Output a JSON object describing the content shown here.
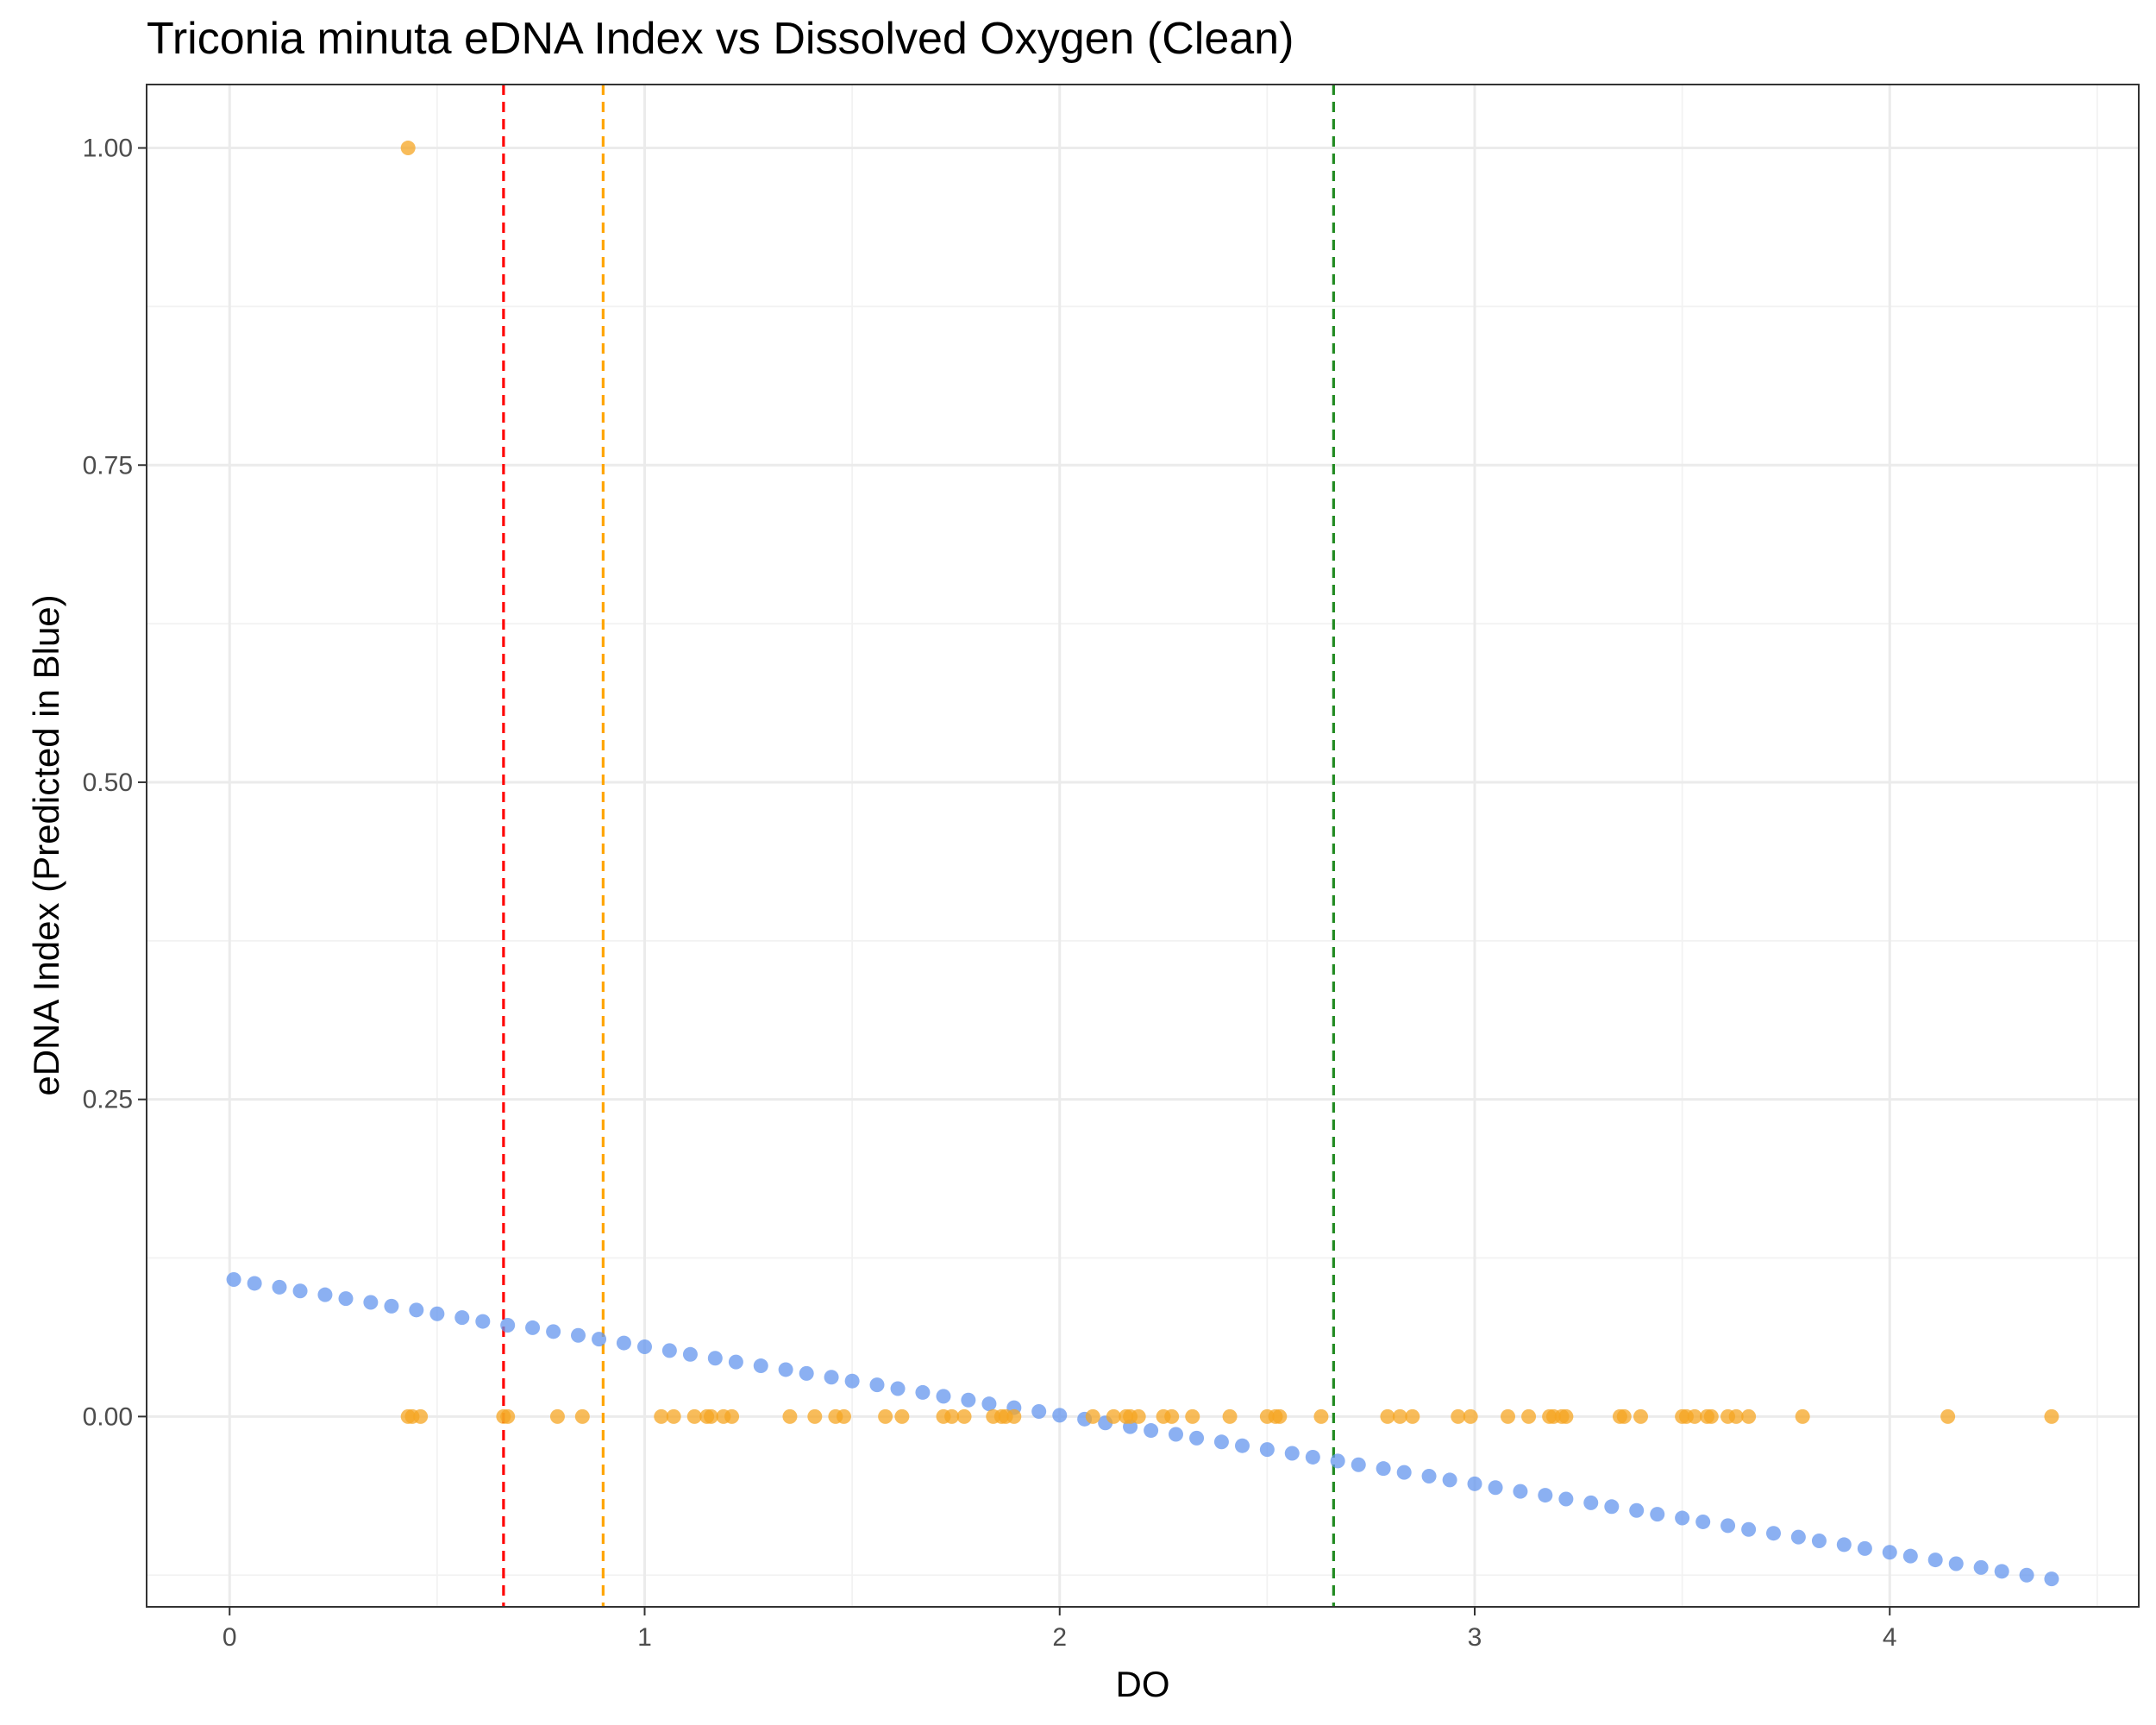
{
  "chart_data": {
    "type": "scatter",
    "title": "Triconia minuta eDNA Index vs Dissolved Oxygen (Clean)",
    "xlabel": "DO",
    "ylabel": "eDNA Index (Predicted in Blue)",
    "xlim": [
      -0.2,
      4.6
    ],
    "ylim": [
      -0.15,
      1.05
    ],
    "x_ticks": [
      0,
      1,
      2,
      3,
      4
    ],
    "y_ticks": [
      0.0,
      0.25,
      0.5,
      0.75,
      1.0
    ],
    "x_tick_labels": [
      "0",
      "1",
      "2",
      "3",
      "4"
    ],
    "y_tick_labels": [
      "0.00",
      "0.25",
      "0.50",
      "0.75",
      "1.00"
    ],
    "grid": true,
    "legend": "none",
    "series": [
      {
        "color": "#6495ED",
        "kind": "predicted",
        "points": [
          [
            0.01,
            0.108
          ],
          [
            0.06,
            0.105
          ],
          [
            0.12,
            0.102
          ],
          [
            0.17,
            0.099
          ],
          [
            0.23,
            0.096
          ],
          [
            0.28,
            0.093
          ],
          [
            0.34,
            0.09
          ],
          [
            0.39,
            0.087
          ],
          [
            0.45,
            0.084
          ],
          [
            0.5,
            0.081
          ],
          [
            0.56,
            0.078
          ],
          [
            0.61,
            0.075
          ],
          [
            0.67,
            0.072
          ],
          [
            0.73,
            0.07
          ],
          [
            0.78,
            0.067
          ],
          [
            0.84,
            0.064
          ],
          [
            0.89,
            0.061
          ],
          [
            0.95,
            0.058
          ],
          [
            1.0,
            0.055
          ],
          [
            1.06,
            0.052
          ],
          [
            1.11,
            0.049
          ],
          [
            1.17,
            0.046
          ],
          [
            1.22,
            0.043
          ],
          [
            1.28,
            0.04
          ],
          [
            1.34,
            0.037
          ],
          [
            1.39,
            0.034
          ],
          [
            1.45,
            0.031
          ],
          [
            1.5,
            0.028
          ],
          [
            1.56,
            0.025
          ],
          [
            1.61,
            0.022
          ],
          [
            1.67,
            0.019
          ],
          [
            1.72,
            0.016
          ],
          [
            1.78,
            0.013
          ],
          [
            1.83,
            0.01
          ],
          [
            1.89,
            0.007
          ],
          [
            1.95,
            0.004
          ],
          [
            2.0,
            0.001
          ],
          [
            2.06,
            -0.002
          ],
          [
            2.11,
            -0.005
          ],
          [
            2.17,
            -0.008
          ],
          [
            2.22,
            -0.011
          ],
          [
            2.28,
            -0.014
          ],
          [
            2.33,
            -0.017
          ],
          [
            2.39,
            -0.02
          ],
          [
            2.44,
            -0.023
          ],
          [
            2.5,
            -0.026
          ],
          [
            2.56,
            -0.029
          ],
          [
            2.61,
            -0.032
          ],
          [
            2.67,
            -0.035
          ],
          [
            2.72,
            -0.038
          ],
          [
            2.78,
            -0.041
          ],
          [
            2.83,
            -0.044
          ],
          [
            2.89,
            -0.047
          ],
          [
            2.94,
            -0.05
          ],
          [
            3.0,
            -0.053
          ],
          [
            3.05,
            -0.056
          ],
          [
            3.11,
            -0.059
          ],
          [
            3.17,
            -0.062
          ],
          [
            3.22,
            -0.065
          ],
          [
            3.28,
            -0.068
          ],
          [
            3.33,
            -0.071
          ],
          [
            3.39,
            -0.074
          ],
          [
            3.44,
            -0.077
          ],
          [
            3.5,
            -0.08
          ],
          [
            3.55,
            -0.083
          ],
          [
            3.61,
            -0.086
          ],
          [
            3.66,
            -0.089
          ],
          [
            3.72,
            -0.092
          ],
          [
            3.78,
            -0.095
          ],
          [
            3.83,
            -0.098
          ],
          [
            3.89,
            -0.101
          ],
          [
            3.94,
            -0.104
          ],
          [
            4.0,
            -0.107
          ],
          [
            4.05,
            -0.11
          ],
          [
            4.11,
            -0.113
          ],
          [
            4.16,
            -0.116
          ],
          [
            4.22,
            -0.119
          ],
          [
            4.27,
            -0.122
          ],
          [
            4.33,
            -0.125
          ],
          [
            4.39,
            -0.128
          ]
        ]
      },
      {
        "color": "#F5A623",
        "kind": "observed",
        "points": [
          [
            0.43,
            1.0
          ],
          [
            0.43,
            0
          ],
          [
            0.44,
            0
          ],
          [
            0.46,
            0
          ],
          [
            0.66,
            0
          ],
          [
            0.67,
            0
          ],
          [
            0.79,
            0
          ],
          [
            0.85,
            0
          ],
          [
            1.04,
            0
          ],
          [
            1.07,
            0
          ],
          [
            1.12,
            0
          ],
          [
            1.15,
            0
          ],
          [
            1.16,
            0
          ],
          [
            1.19,
            0
          ],
          [
            1.21,
            0
          ],
          [
            1.35,
            0
          ],
          [
            1.41,
            0
          ],
          [
            1.46,
            0
          ],
          [
            1.48,
            0
          ],
          [
            1.58,
            0
          ],
          [
            1.62,
            0
          ],
          [
            1.72,
            0
          ],
          [
            1.74,
            0
          ],
          [
            1.77,
            0
          ],
          [
            1.84,
            0
          ],
          [
            1.86,
            0
          ],
          [
            1.87,
            0
          ],
          [
            1.89,
            0
          ],
          [
            2.08,
            0
          ],
          [
            2.13,
            0
          ],
          [
            2.16,
            0
          ],
          [
            2.17,
            0
          ],
          [
            2.19,
            0
          ],
          [
            2.25,
            0
          ],
          [
            2.27,
            0
          ],
          [
            2.32,
            0
          ],
          [
            2.41,
            0
          ],
          [
            2.5,
            0
          ],
          [
            2.52,
            0
          ],
          [
            2.53,
            0
          ],
          [
            2.63,
            0
          ],
          [
            2.79,
            0
          ],
          [
            2.82,
            0
          ],
          [
            2.85,
            0
          ],
          [
            2.96,
            0
          ],
          [
            2.99,
            0
          ],
          [
            3.08,
            0
          ],
          [
            3.13,
            0
          ],
          [
            3.18,
            0
          ],
          [
            3.19,
            0
          ],
          [
            3.21,
            0
          ],
          [
            3.22,
            0
          ],
          [
            3.35,
            0
          ],
          [
            3.36,
            0
          ],
          [
            3.4,
            0
          ],
          [
            3.5,
            0
          ],
          [
            3.51,
            0
          ],
          [
            3.53,
            0
          ],
          [
            3.56,
            0
          ],
          [
            3.57,
            0
          ],
          [
            3.61,
            0
          ],
          [
            3.63,
            0
          ],
          [
            3.66,
            0
          ],
          [
            3.79,
            0
          ],
          [
            4.14,
            0
          ],
          [
            4.39,
            0
          ]
        ]
      }
    ],
    "vlines": [
      {
        "x": 0.66,
        "color": "#FF0000",
        "style": "dashed"
      },
      {
        "x": 0.9,
        "color": "#FFA500",
        "style": "dashed"
      },
      {
        "x": 2.66,
        "color": "#228B22",
        "style": "dashed"
      }
    ]
  }
}
